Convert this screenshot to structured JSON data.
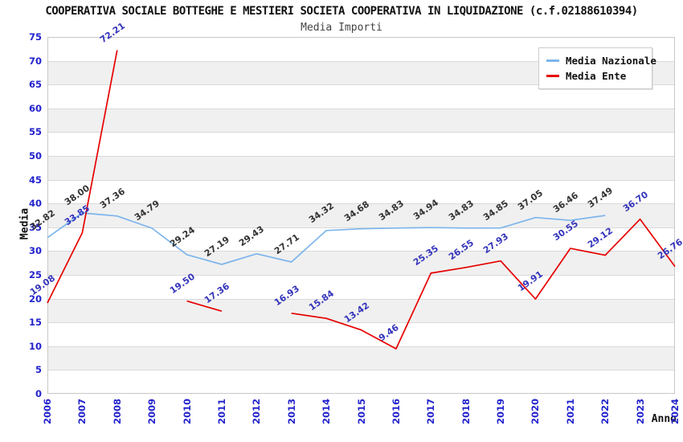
{
  "header": {
    "title": "COOPERATIVA SOCIALE BOTTEGHE E MESTIERI SOCIETA COOPERATIVA IN LIQUIDAZIONE (c.f.02188610394)",
    "subtitle": "Media Importi"
  },
  "colors": {
    "nazionale_line": "#7cb5ec",
    "ente_line": "#e60000",
    "tick_label": "#2222cc",
    "nazionale_data_label": "#333333",
    "ente_data_label": "#3333bb",
    "band": "#f0f0f0",
    "gridline": "#d9d9d9",
    "axis_border": "#c8c8c8"
  },
  "chart_data": {
    "type": "line",
    "title": "COOPERATIVA SOCIALE BOTTEGHE E MESTIERI SOCIETA COOPERATIVA IN LIQUIDAZIONE (c.f.02188610394)",
    "subtitle": "Media Importi",
    "xlabel": "Anno",
    "ylabel": "Media",
    "ylim": [
      0,
      75
    ],
    "ytick_step": 5,
    "grid": "horizontal-bands-alternating",
    "legend_position": "top-right-inside",
    "categories": [
      "2006",
      "2007",
      "2008",
      "2009",
      "2010",
      "2011",
      "2012",
      "2013",
      "2014",
      "2015",
      "2016",
      "2017",
      "2018",
      "2019",
      "2020",
      "2021",
      "2022",
      "2023",
      "2024"
    ],
    "series": [
      {
        "name": "Media Nazionale",
        "color": "#7cb5ec",
        "label_color": "#333333",
        "values": [
          32.82,
          38.0,
          37.36,
          34.79,
          29.24,
          27.19,
          29.43,
          27.71,
          34.32,
          34.68,
          34.83,
          34.94,
          34.83,
          34.85,
          37.05,
          36.46,
          37.49,
          null,
          null
        ]
      },
      {
        "name": "Media Ente",
        "color": "#e60000",
        "label_color": "#3333bb",
        "values": [
          19.08,
          33.85,
          72.21,
          null,
          19.5,
          17.36,
          null,
          16.93,
          15.84,
          13.42,
          9.46,
          25.35,
          26.55,
          27.93,
          19.91,
          30.55,
          29.12,
          36.7,
          26.76
        ]
      }
    ]
  }
}
